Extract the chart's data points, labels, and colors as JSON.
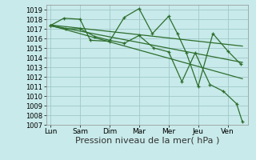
{
  "background_color": "#c8eaea",
  "grid_color": "#a0c8c8",
  "line_color": "#2d6e2d",
  "xlabel": "Pression niveau de la mer( hPa )",
  "xlabel_fontsize": 8,
  "ylim": [
    1007,
    1019.5
  ],
  "yticks": [
    1007,
    1008,
    1009,
    1010,
    1011,
    1012,
    1013,
    1014,
    1015,
    1016,
    1017,
    1018,
    1019
  ],
  "xtick_labels": [
    "Lun",
    "Sam",
    "Dim",
    "Mar",
    "Mer",
    "Jeu",
    "Ven"
  ],
  "xtick_positions": [
    0,
    1,
    2,
    3,
    4,
    5,
    6
  ],
  "xlim": [
    -0.15,
    6.7
  ],
  "line1_x": [
    0.0,
    0.45,
    1.0,
    1.35,
    2.0,
    2.5,
    3.0,
    3.45,
    4.0,
    4.3,
    4.6,
    5.0,
    5.5,
    6.0,
    6.45
  ],
  "line1_y": [
    1017.35,
    1018.1,
    1018.0,
    1015.8,
    1015.7,
    1018.2,
    1019.1,
    1016.5,
    1018.3,
    1016.5,
    1014.5,
    1011.0,
    1016.5,
    1014.7,
    1013.3
  ],
  "line2_x": [
    0.0,
    0.5,
    1.0,
    1.5,
    2.0,
    2.5,
    3.0,
    3.5,
    4.0,
    4.45,
    4.9,
    5.4,
    5.85,
    6.3,
    6.5
  ],
  "line2_y": [
    1017.3,
    1017.0,
    1017.0,
    1016.2,
    1015.8,
    1015.5,
    1016.3,
    1015.0,
    1014.6,
    1011.5,
    1014.5,
    1011.2,
    1010.5,
    1009.2,
    1007.3
  ],
  "smooth_lines": [
    {
      "x": [
        0.0,
        6.5
      ],
      "y": [
        1017.35,
        1011.8
      ]
    },
    {
      "x": [
        0.0,
        6.5
      ],
      "y": [
        1017.35,
        1013.5
      ]
    },
    {
      "x": [
        0.0,
        6.5
      ],
      "y": [
        1017.4,
        1015.2
      ]
    }
  ]
}
